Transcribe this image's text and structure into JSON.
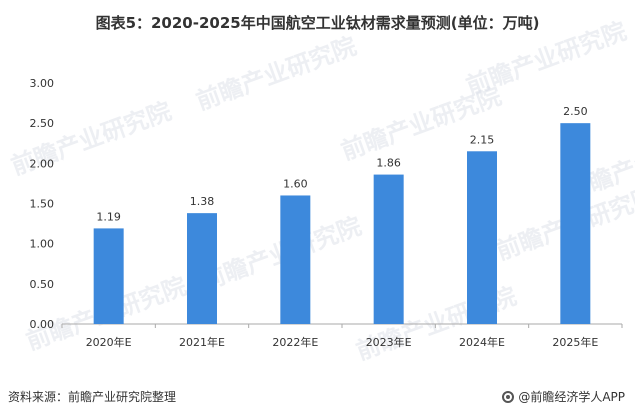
{
  "title": "图表5：2020-2025年中国航空工业钛材需求量预测(单位：万吨)",
  "source": "资料来源：前瞻产业研究院整理",
  "brand": "@前瞻经济学人APP",
  "watermark_text": "前瞻产业研究院",
  "colors": {
    "bar": "#3d89dc",
    "axis": "#aaaaaa"
  },
  "chart_data": {
    "type": "bar",
    "title": "图表5：2020-2025年中国航空工业钛材需求量预测(单位：万吨)",
    "categories": [
      "2020年E",
      "2021年E",
      "2022年E",
      "2023年E",
      "2024年E",
      "2025年E"
    ],
    "values": [
      1.19,
      1.38,
      1.6,
      1.86,
      2.15,
      2.5
    ],
    "value_labels": [
      "1.19",
      "1.38",
      "1.60",
      "1.86",
      "2.15",
      "2.50"
    ],
    "ylim": [
      0,
      3
    ],
    "yticks": [
      "0.00",
      "0.50",
      "1.00",
      "1.50",
      "2.00",
      "2.50",
      "3.00"
    ],
    "xlabel": "",
    "ylabel": "",
    "grid": false
  }
}
